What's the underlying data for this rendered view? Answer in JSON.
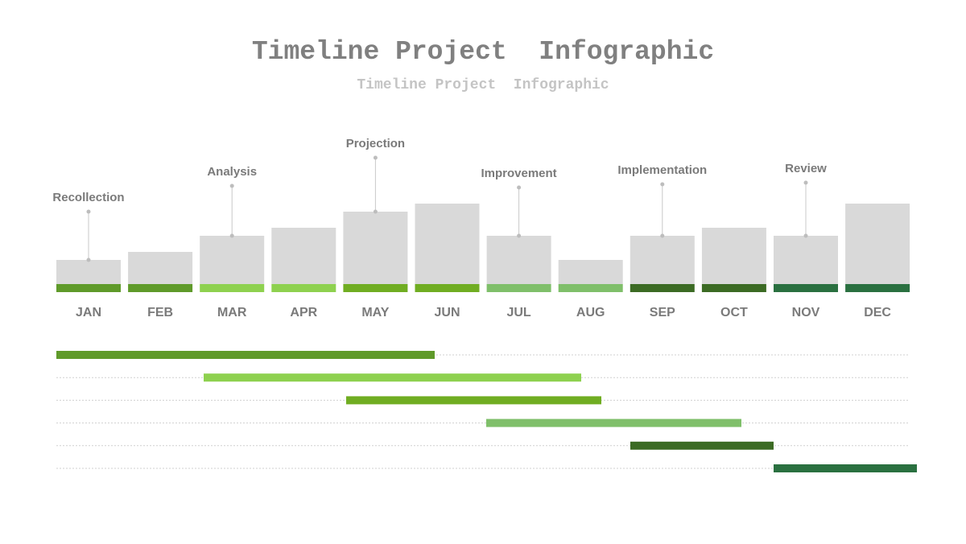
{
  "header": {
    "title": "Timeline Project  Infographic",
    "subtitle": "Timeline Project  Infographic"
  },
  "months": [
    "JAN",
    "FEB",
    "MAR",
    "APR",
    "MAY",
    "JUN",
    "JUL",
    "AUG",
    "SEP",
    "OCT",
    "NOV",
    "DEC"
  ],
  "phases": [
    {
      "label": "Recollection"
    },
    {
      "label": "Analysis"
    },
    {
      "label": "Projection"
    },
    {
      "label": "Improvement"
    },
    {
      "label": "Implementation"
    },
    {
      "label": "Review"
    }
  ]
}
